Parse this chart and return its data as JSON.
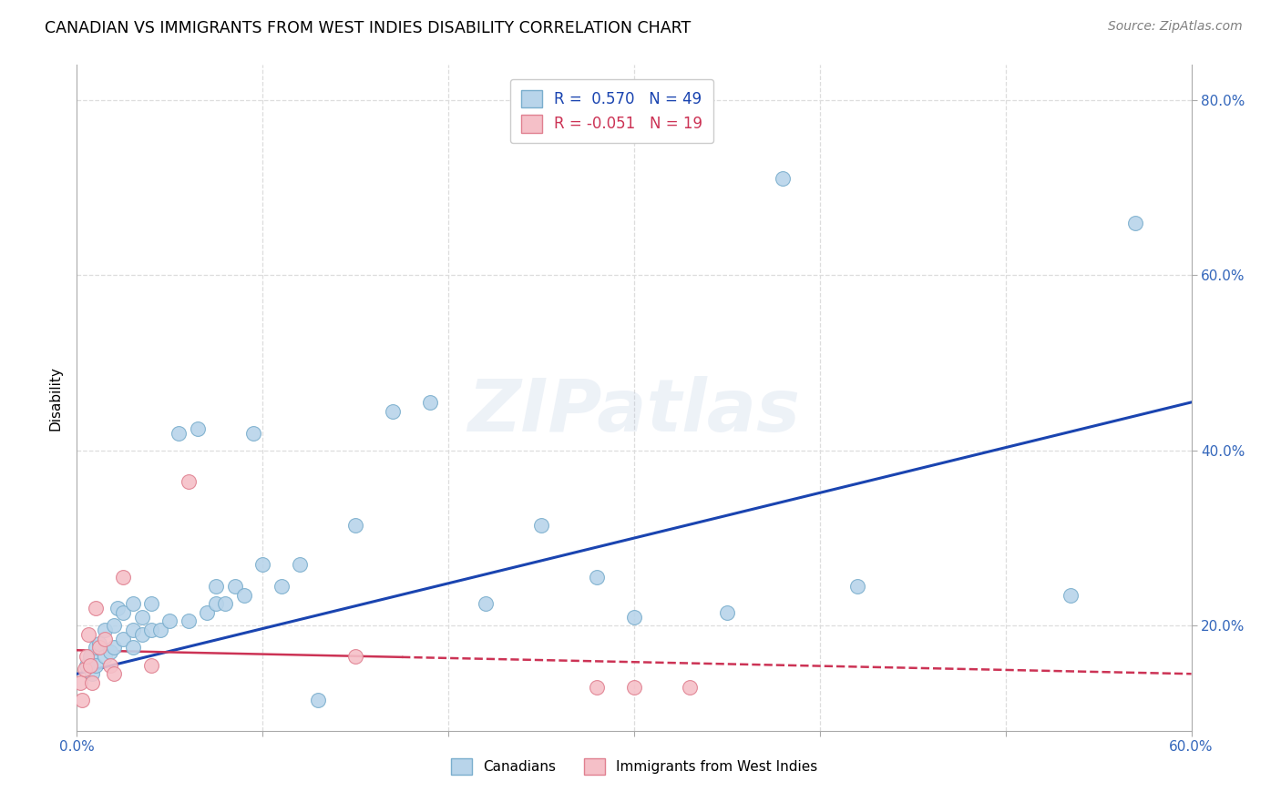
{
  "title": "CANADIAN VS IMMIGRANTS FROM WEST INDIES DISABILITY CORRELATION CHART",
  "source": "Source: ZipAtlas.com",
  "ylabel": "Disability",
  "xlim": [
    0.0,
    0.6
  ],
  "ylim": [
    0.08,
    0.84
  ],
  "canadian_R": 0.57,
  "canadian_N": 49,
  "westindies_R": -0.051,
  "westindies_N": 19,
  "canadian_color": "#b8d4ea",
  "canadian_edge_color": "#7aaecd",
  "westindies_color": "#f5c0c8",
  "westindies_edge_color": "#e08090",
  "trend_canadian_color": "#1a44b0",
  "trend_westindies_color": "#cc3355",
  "trend_line_x0": 0.0,
  "trend_line_x1": 0.6,
  "trend_canadian_y0": 0.145,
  "trend_canadian_y1": 0.455,
  "trend_westindies_y0": 0.172,
  "trend_westindies_y1": 0.145,
  "trend_solid_end": 0.175,
  "canadians_x": [
    0.005,
    0.007,
    0.008,
    0.01,
    0.01,
    0.012,
    0.015,
    0.015,
    0.018,
    0.02,
    0.02,
    0.022,
    0.025,
    0.025,
    0.03,
    0.03,
    0.03,
    0.035,
    0.035,
    0.04,
    0.04,
    0.045,
    0.05,
    0.055,
    0.06,
    0.065,
    0.07,
    0.075,
    0.075,
    0.08,
    0.085,
    0.09,
    0.095,
    0.1,
    0.11,
    0.12,
    0.13,
    0.15,
    0.17,
    0.19,
    0.22,
    0.25,
    0.28,
    0.3,
    0.35,
    0.38,
    0.42,
    0.535,
    0.57
  ],
  "canadians_y": [
    0.155,
    0.165,
    0.145,
    0.155,
    0.175,
    0.18,
    0.165,
    0.195,
    0.17,
    0.175,
    0.2,
    0.22,
    0.185,
    0.215,
    0.175,
    0.195,
    0.225,
    0.19,
    0.21,
    0.195,
    0.225,
    0.195,
    0.205,
    0.42,
    0.205,
    0.425,
    0.215,
    0.225,
    0.245,
    0.225,
    0.245,
    0.235,
    0.42,
    0.27,
    0.245,
    0.27,
    0.115,
    0.315,
    0.445,
    0.455,
    0.225,
    0.315,
    0.255,
    0.21,
    0.215,
    0.71,
    0.245,
    0.235,
    0.66
  ],
  "westindies_x": [
    0.002,
    0.003,
    0.004,
    0.005,
    0.006,
    0.007,
    0.008,
    0.01,
    0.012,
    0.015,
    0.018,
    0.02,
    0.025,
    0.04,
    0.06,
    0.15,
    0.28,
    0.3,
    0.33
  ],
  "westindies_y": [
    0.135,
    0.115,
    0.15,
    0.165,
    0.19,
    0.155,
    0.135,
    0.22,
    0.175,
    0.185,
    0.155,
    0.145,
    0.255,
    0.155,
    0.365,
    0.165,
    0.13,
    0.13,
    0.13
  ],
  "watermark_text": "ZIPatlas",
  "bg_color": "#ffffff",
  "grid_color": "#dddddd",
  "tick_color": "#3366bb"
}
